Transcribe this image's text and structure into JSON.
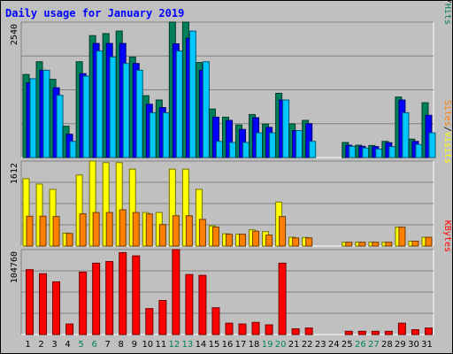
{
  "chart_data": {
    "type": "bar",
    "title": "Daily usage for January 2019",
    "categories": [
      "1",
      "2",
      "3",
      "4",
      "5",
      "6",
      "7",
      "8",
      "9",
      "10",
      "11",
      "12",
      "13",
      "14",
      "15",
      "16",
      "17",
      "18",
      "19",
      "20",
      "21",
      "22",
      "23",
      "24",
      "25",
      "26",
      "27",
      "28",
      "29",
      "30",
      "31"
    ],
    "weekend_days": [
      "5",
      "6",
      "12",
      "13",
      "19",
      "20",
      "26",
      "27"
    ],
    "panels": [
      {
        "id": "hits-panel",
        "ymax_label": "2540",
        "ymax": 2540,
        "legend": [
          {
            "text": "Pages",
            "color": "#00c8ff"
          },
          {
            "text": "/",
            "color": "#000000"
          },
          {
            "text": "Files",
            "color": "#0000ff"
          },
          {
            "text": "/",
            "color": "#000000"
          },
          {
            "text": "Hits",
            "color": "#00805b"
          }
        ],
        "series": [
          {
            "name": "Hits",
            "color": "#00805b",
            "values": [
              1558,
              1797,
              1467,
              587,
              1797,
              2287,
              2325,
              2372,
              1885,
              1160,
              1079,
              2540,
              2540,
              1783,
              909,
              757,
              611,
              806,
              627,
              1205,
              632,
              697,
              0,
              0,
              282,
              231,
              226,
              303,
              1135,
              345,
              1028
            ]
          },
          {
            "name": "Files",
            "color": "#0000ff",
            "values": [
              1400,
              1637,
              1309,
              437,
              1574,
              2140,
              2140,
              2140,
              1764,
              1000,
              937,
              2134,
              2237,
              1637,
              757,
              697,
              527,
              747,
              566,
              1079,
              506,
              635,
              0,
              0,
              231,
              210,
              205,
              278,
              1079,
              303,
              792
            ]
          },
          {
            "name": "Pages",
            "color": "#00c8ff",
            "values": [
              1479,
              1637,
              1167,
              303,
              1527,
              1999,
              1885,
              1764,
              1637,
              840,
              840,
              1999,
              2372,
              1797,
              303,
              282,
              282,
              463,
              463,
              1079,
              506,
              303,
              0,
              0,
              210,
              180,
              160,
              204,
              840,
              245,
              463
            ]
          }
        ]
      },
      {
        "id": "visits-panel",
        "ymax_label": "1612",
        "ymax": 1612,
        "legend": [
          {
            "text": "Sites",
            "color": "#ff8000"
          },
          {
            "text": "/",
            "color": "#000000"
          },
          {
            "text": "Visits",
            "color": "#ffff00"
          }
        ],
        "series": [
          {
            "name": "Visits",
            "color": "#ffff00",
            "values": [
              1278,
              1176,
              1075,
              245,
              1347,
              1612,
              1582,
              1582,
              1458,
              636,
              636,
              1458,
              1458,
              1075,
              382,
              233,
              224,
              307,
              273,
              834,
              166,
              163,
              0,
              0,
              72,
              72,
              72,
              72,
              358,
              92,
              166
            ]
          },
          {
            "name": "Sites",
            "color": "#ff8000",
            "values": [
              566,
              566,
              560,
              239,
              611,
              636,
              636,
              688,
              636,
              608,
              408,
              575,
              575,
              506,
              360,
              224,
              224,
              281,
              209,
              560,
              154,
              154,
              0,
              0,
              72,
              72,
              72,
              72,
              358,
              92,
              166
            ]
          }
        ]
      },
      {
        "id": "kbytes-panel",
        "ymax_label": "104760",
        "ymax": 104760,
        "legend": [
          {
            "text": "KBytes",
            "color": "#ff0000"
          }
        ],
        "series": [
          {
            "name": "KBytes",
            "color": "#ff0000",
            "values": [
              80000,
              75000,
              65000,
              13000,
              77000,
              88000,
              90000,
              101000,
              97000,
              32000,
              42000,
              104760,
              74000,
              73000,
              33000,
              14000,
              13000,
              15000,
              12000,
              88000,
              7000,
              8000,
              0,
              0,
              4000,
              4000,
              4000,
              4000,
              14000,
              6000,
              8000
            ]
          }
        ]
      }
    ]
  }
}
